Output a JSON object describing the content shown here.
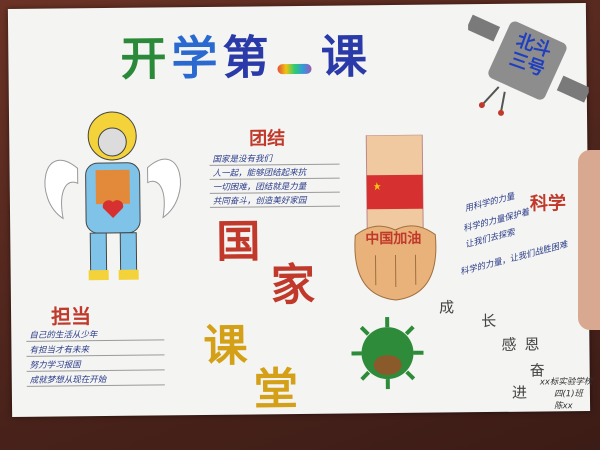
{
  "title": {
    "chars": [
      "开",
      "学",
      "第",
      "一",
      "课"
    ],
    "colors": [
      "#2a8a3a",
      "#2a3aa8",
      "#2a3aa8",
      "#e67e22",
      "#2a3aa8"
    ]
  },
  "satellite": {
    "label_lines": [
      "北斗",
      "三号"
    ]
  },
  "unity": {
    "heading": "团结",
    "lines": [
      "国家是没有我们",
      "人一起，能够团结起来抗",
      "一切困难，团结就是力量",
      "共同奋斗，创造美好家园"
    ]
  },
  "fist": {
    "label": "中国加油"
  },
  "science": {
    "heading": "科学",
    "lines": [
      "用科学的力量",
      "科学的力量保护着",
      "让我们去探索",
      "科学的力量，让我们战胜困难"
    ]
  },
  "duty": {
    "heading": "担当",
    "lines": [
      "自己的生活从少年",
      "有担当才有未来",
      "努力学习报国",
      "成就梦想从现在开始"
    ]
  },
  "vertical": {
    "chars": [
      "国",
      "家",
      "课",
      "堂"
    ],
    "colors": [
      "#c0392b",
      "#c0392b",
      "#d4a017",
      "#d4a017"
    ]
  },
  "growth": {
    "words": [
      "成",
      "长"
    ]
  },
  "gratitude": {
    "words": [
      "感恩",
      "奋",
      "进"
    ]
  },
  "signature": {
    "lines": [
      "xx标实验学校",
      "四(1)班",
      "陈xx"
    ]
  }
}
